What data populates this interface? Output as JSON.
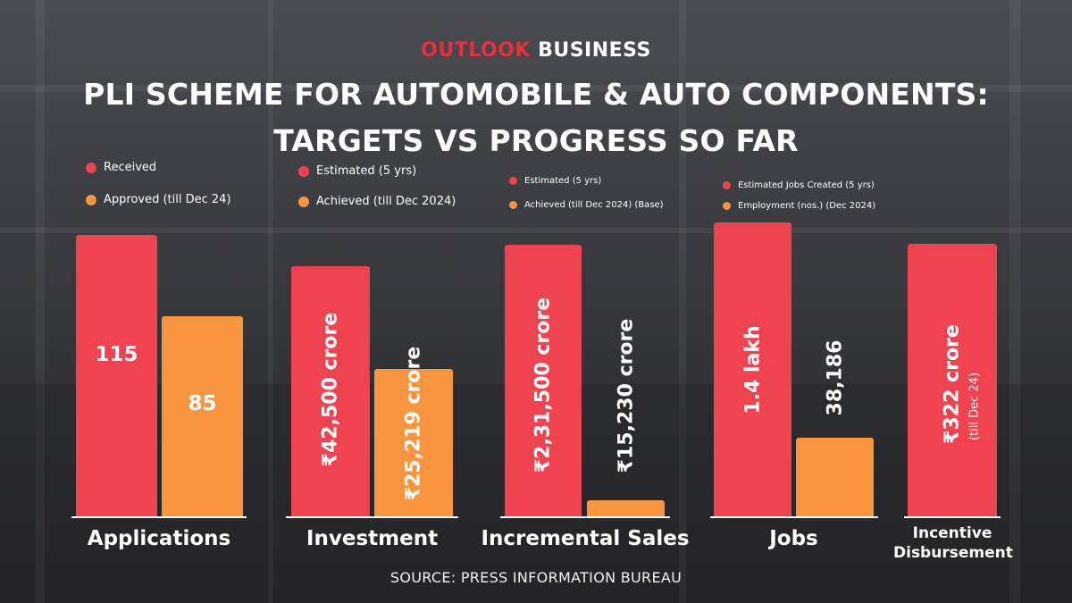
{
  "brand": {
    "part1": "OUTLOOK",
    "part2": "BUSINESS"
  },
  "title_line1": "PLI SCHEME FOR AUTOMOBILE & AUTO COMPONENTS:",
  "title_line2": "TARGETS VS PROGRESS SO FAR",
  "source": "SOURCE: PRESS INFORMATION BUREAU",
  "colors": {
    "red": "#ef4450",
    "orange": "#f8953e"
  },
  "chart_data": [
    {
      "type": "bar",
      "category": "Applications",
      "legend": [
        "Received",
        "Approved (till Dec 24)"
      ],
      "series": [
        {
          "name": "Received",
          "value": 115,
          "label": "115"
        },
        {
          "name": "Approved (till Dec 24)",
          "value": 85,
          "label": "85"
        }
      ]
    },
    {
      "type": "bar",
      "category": "Investment",
      "unit": "₹ crore",
      "legend": [
        "Estimated (5 yrs)",
        "Achieved (till Dec 2024)"
      ],
      "series": [
        {
          "name": "Estimated (5 yrs)",
          "value": 42500,
          "label": "₹42,500 crore"
        },
        {
          "name": "Achieved (till Dec 2024)",
          "value": 25219,
          "label": "₹25,219 crore"
        }
      ]
    },
    {
      "type": "bar",
      "category": "Incremental Sales",
      "unit": "₹ crore",
      "legend": [
        "Estimated (5 yrs)",
        "Achieved (till Dec 2024) (Base)"
      ],
      "series": [
        {
          "name": "Estimated (5 yrs)",
          "value": 231500,
          "label": "₹2,31,500 crore"
        },
        {
          "name": "Achieved (till Dec 2024) (Base)",
          "value": 15230,
          "label": "₹15,230 crore"
        }
      ]
    },
    {
      "type": "bar",
      "category": "Jobs",
      "legend": [
        "Estimated Jobs Created (5 yrs)",
        "Employment (nos.) (Dec 2024)"
      ],
      "series": [
        {
          "name": "Estimated Jobs Created (5 yrs)",
          "value": 140000,
          "label": "1.4 lakh"
        },
        {
          "name": "Employment (nos.) (Dec 2024)",
          "value": 38186,
          "label": "38,186"
        }
      ]
    },
    {
      "type": "bar",
      "category_lines": [
        "Incentive",
        "Disbursement"
      ],
      "unit": "₹ crore",
      "legend": [],
      "series": [
        {
          "value": 322,
          "label": "₹322 crore",
          "sublabel": "(till Dec 24)"
        }
      ]
    }
  ]
}
